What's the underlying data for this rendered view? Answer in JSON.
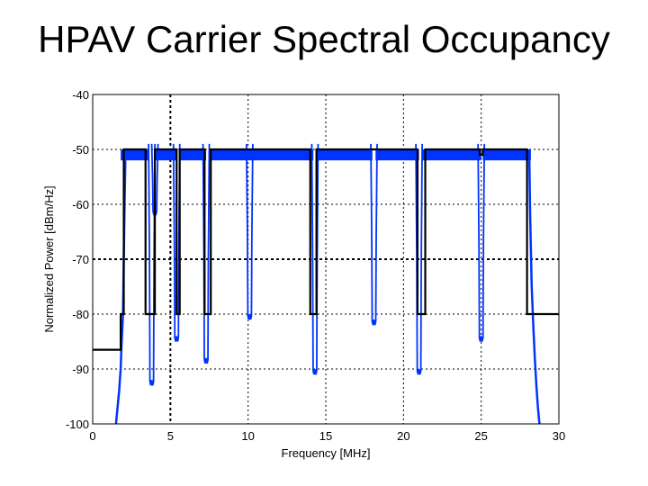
{
  "title": "HPAV Carrier Spectral Occupancy",
  "chart_data": {
    "type": "line",
    "xlabel": "Frequency [MHz]",
    "ylabel": "Normalized Power [dBm/Hz]",
    "xlim": [
      0,
      30
    ],
    "ylim": [
      -100,
      -40
    ],
    "x_ticks": [
      0,
      5,
      10,
      15,
      20,
      25,
      30
    ],
    "y_ticks": [
      -40,
      -50,
      -60,
      -70,
      -80,
      -90,
      -100
    ],
    "grid": true,
    "bold_gridlines": {
      "x": [
        5
      ],
      "y": [
        -70
      ]
    },
    "colors": {
      "mask": "#000000",
      "spectrum": "#0033ff",
      "grid": "#000000"
    },
    "series": [
      {
        "role": "mask",
        "x": [
          0,
          1.8,
          1.8,
          2.0,
          2.0,
          3.4,
          3.4,
          4.0,
          4.0,
          5.4,
          5.4,
          5.6,
          5.6,
          7.2,
          7.2,
          7.6,
          7.6,
          14.0,
          14.0,
          14.4,
          14.4,
          20.9,
          20.9,
          21.4,
          21.4,
          24.9,
          24.9,
          25.1,
          25.1,
          27.95,
          27.95,
          30
        ],
        "y": [
          -86.5,
          -86.5,
          -80,
          -80,
          -50,
          -50,
          -80,
          -80,
          -50,
          -50,
          -80,
          -80,
          -50,
          -50,
          -80,
          -80,
          -50,
          -50,
          -80,
          -80,
          -50,
          -50,
          -80,
          -80,
          -50,
          -50,
          -51,
          -51,
          -50,
          -50,
          -80,
          -80
        ]
      },
      {
        "role": "spectrum",
        "bands": [
          [
            1.8,
            3.6
          ],
          [
            4.0,
            5.4
          ],
          [
            5.6,
            7.3
          ],
          [
            7.5,
            14.2
          ],
          [
            14.4,
            18.0
          ],
          [
            18.2,
            21.0
          ],
          [
            21.2,
            25.0
          ],
          [
            25.1,
            28.2
          ]
        ],
        "band_top": -50,
        "band_ripple_bottom": -52,
        "edge_samples": [
          [
            1.5,
            -100
          ],
          [
            1.6,
            -97
          ],
          [
            1.7,
            -94
          ],
          [
            1.8,
            -90
          ],
          [
            1.85,
            -86
          ],
          [
            1.95,
            -80
          ],
          [
            2.0,
            -70
          ],
          [
            2.05,
            -60
          ],
          [
            2.1,
            -52
          ]
        ],
        "notches": [
          {
            "x": 3.8,
            "min": -93
          },
          {
            "x": 4.0,
            "min": -62
          },
          {
            "x": 5.4,
            "min": -85
          },
          {
            "x": 7.3,
            "min": -89
          },
          {
            "x": 10.1,
            "min": -81
          },
          {
            "x": 14.3,
            "min": -91
          },
          {
            "x": 18.1,
            "min": -82
          },
          {
            "x": 21.0,
            "min": -91
          },
          {
            "x": 25.0,
            "min": -85
          }
        ],
        "tail_samples": [
          [
            28.1,
            -52
          ],
          [
            28.15,
            -62
          ],
          [
            28.25,
            -75
          ],
          [
            28.35,
            -82
          ],
          [
            28.45,
            -88
          ],
          [
            28.55,
            -93
          ],
          [
            28.65,
            -97
          ],
          [
            28.75,
            -100
          ]
        ]
      }
    ]
  }
}
